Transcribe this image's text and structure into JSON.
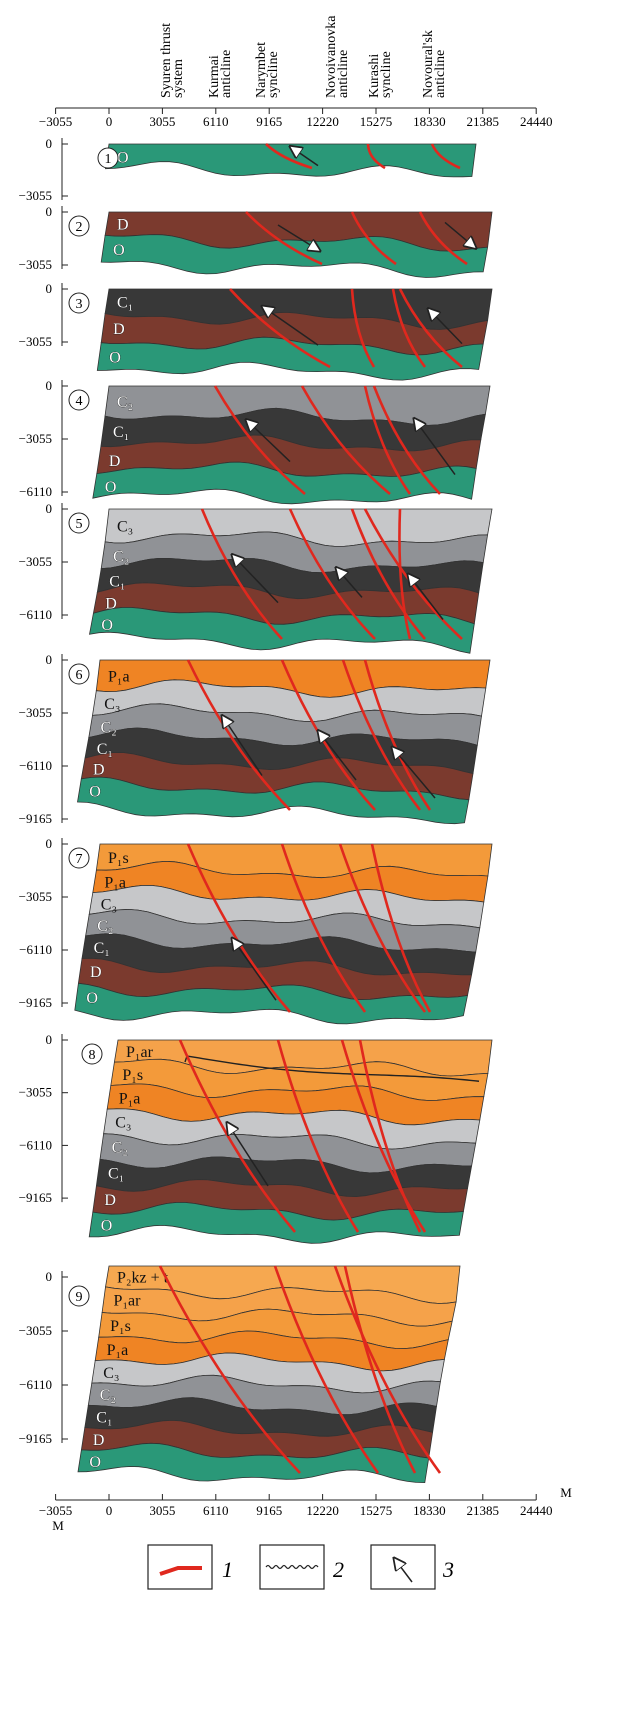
{
  "header": {
    "structures": [
      {
        "lines": [
          "Syuren thrust",
          "system"
        ]
      },
      {
        "lines": [
          "Kurmai",
          "anticline"
        ]
      },
      {
        "lines": [
          "Narymbet",
          "syncline"
        ]
      },
      {
        "lines": [
          "Novoivanovka",
          "anticline"
        ]
      },
      {
        "lines": [
          "Kurashi",
          "syncline"
        ]
      },
      {
        "lines": [
          "Novoural'sk",
          "anticline"
        ]
      }
    ]
  },
  "top_axis": {
    "ticks": [
      "−3055",
      "0",
      "3055",
      "6110",
      "9165",
      "12220",
      "15275",
      "18330",
      "21385",
      "24440"
    ]
  },
  "panels": [
    {
      "number": "1",
      "yticks": [
        "0",
        "−3055"
      ],
      "layers": [
        {
          "label": "O",
          "color": "#2a9878"
        }
      ]
    },
    {
      "number": "2",
      "yticks": [
        "0",
        "−3055"
      ],
      "layers": [
        {
          "label": "D",
          "color": "#7b3a2e"
        },
        {
          "label": "O",
          "color": "#2a9878"
        }
      ]
    },
    {
      "number": "3",
      "yticks": [
        "0",
        "−3055"
      ],
      "layers": [
        {
          "label": "C₁",
          "color": "#383838"
        },
        {
          "label": "D",
          "color": "#7b3a2e"
        },
        {
          "label": "O",
          "color": "#2a9878"
        }
      ]
    },
    {
      "number": "4",
      "yticks": [
        "0",
        "−3055",
        "−6110"
      ],
      "layers": [
        {
          "label": "C₂",
          "color": "#909296"
        },
        {
          "label": "C₁",
          "color": "#383838"
        },
        {
          "label": "D",
          "color": "#7b3a2e"
        },
        {
          "label": "O",
          "color": "#2a9878"
        }
      ]
    },
    {
      "number": "5",
      "yticks": [
        "0",
        "−3055",
        "−6110"
      ],
      "layers": [
        {
          "label": "C₃",
          "color": "#c6c7c9"
        },
        {
          "label": "C₂",
          "color": "#909296"
        },
        {
          "label": "C₁",
          "color": "#383838"
        },
        {
          "label": "D",
          "color": "#7b3a2e"
        },
        {
          "label": "O",
          "color": "#2a9878"
        }
      ]
    },
    {
      "number": "6",
      "yticks": [
        "0",
        "−3055",
        "−6110",
        "−9165"
      ],
      "layers": [
        {
          "label": "P₁a",
          "color": "#ef8424"
        },
        {
          "label": "C₃",
          "color": "#c6c7c9"
        },
        {
          "label": "C₂",
          "color": "#909296"
        },
        {
          "label": "C₁",
          "color": "#383838"
        },
        {
          "label": "D",
          "color": "#7b3a2e"
        },
        {
          "label": "O",
          "color": "#2a9878"
        }
      ]
    },
    {
      "number": "7",
      "yticks": [
        "0",
        "−3055",
        "−6110",
        "−9165"
      ],
      "layers": [
        {
          "label": "P₁s",
          "color": "#f39a3a"
        },
        {
          "label": "P₁a",
          "color": "#ef8424"
        },
        {
          "label": "C₃",
          "color": "#c6c7c9"
        },
        {
          "label": "C₂",
          "color": "#909296"
        },
        {
          "label": "C₁",
          "color": "#383838"
        },
        {
          "label": "D",
          "color": "#7b3a2e"
        },
        {
          "label": "O",
          "color": "#2a9878"
        }
      ]
    },
    {
      "number": "8",
      "yticks": [
        "0",
        "−3055",
        "−6110",
        "−9165"
      ],
      "layers": [
        {
          "label": "P₁ar",
          "color": "#f5a24a"
        },
        {
          "label": "P₁s",
          "color": "#f39a3a"
        },
        {
          "label": "P₁a",
          "color": "#ef8424"
        },
        {
          "label": "C₃",
          "color": "#c6c7c9"
        },
        {
          "label": "C₂",
          "color": "#909296"
        },
        {
          "label": "C₁",
          "color": "#383838"
        },
        {
          "label": "D",
          "color": "#7b3a2e"
        },
        {
          "label": "O",
          "color": "#2a9878"
        }
      ]
    },
    {
      "number": "9",
      "yticks": [
        "0",
        "−3055",
        "−6110",
        "−9165"
      ],
      "layers": [
        {
          "label": "P₂kz + t",
          "color": "#f6a850"
        },
        {
          "label": "P₁ar",
          "color": "#f5a24a"
        },
        {
          "label": "P₁s",
          "color": "#f39a3a"
        },
        {
          "label": "P₁a",
          "color": "#ef8424"
        },
        {
          "label": "C₃",
          "color": "#c6c7c9"
        },
        {
          "label": "C₂",
          "color": "#909296"
        },
        {
          "label": "C₁",
          "color": "#383838"
        },
        {
          "label": "D",
          "color": "#7b3a2e"
        },
        {
          "label": "O",
          "color": "#2a9878"
        }
      ]
    }
  ],
  "bottom_axis": {
    "ticks": [
      "−3055",
      "0",
      "3055",
      "6110",
      "9165",
      "12220",
      "15275",
      "18330",
      "21385",
      "24440"
    ],
    "unit_right": "M",
    "unit_left": "M"
  },
  "legend": [
    {
      "label": "1"
    },
    {
      "label": "2"
    },
    {
      "label": "3"
    }
  ]
}
